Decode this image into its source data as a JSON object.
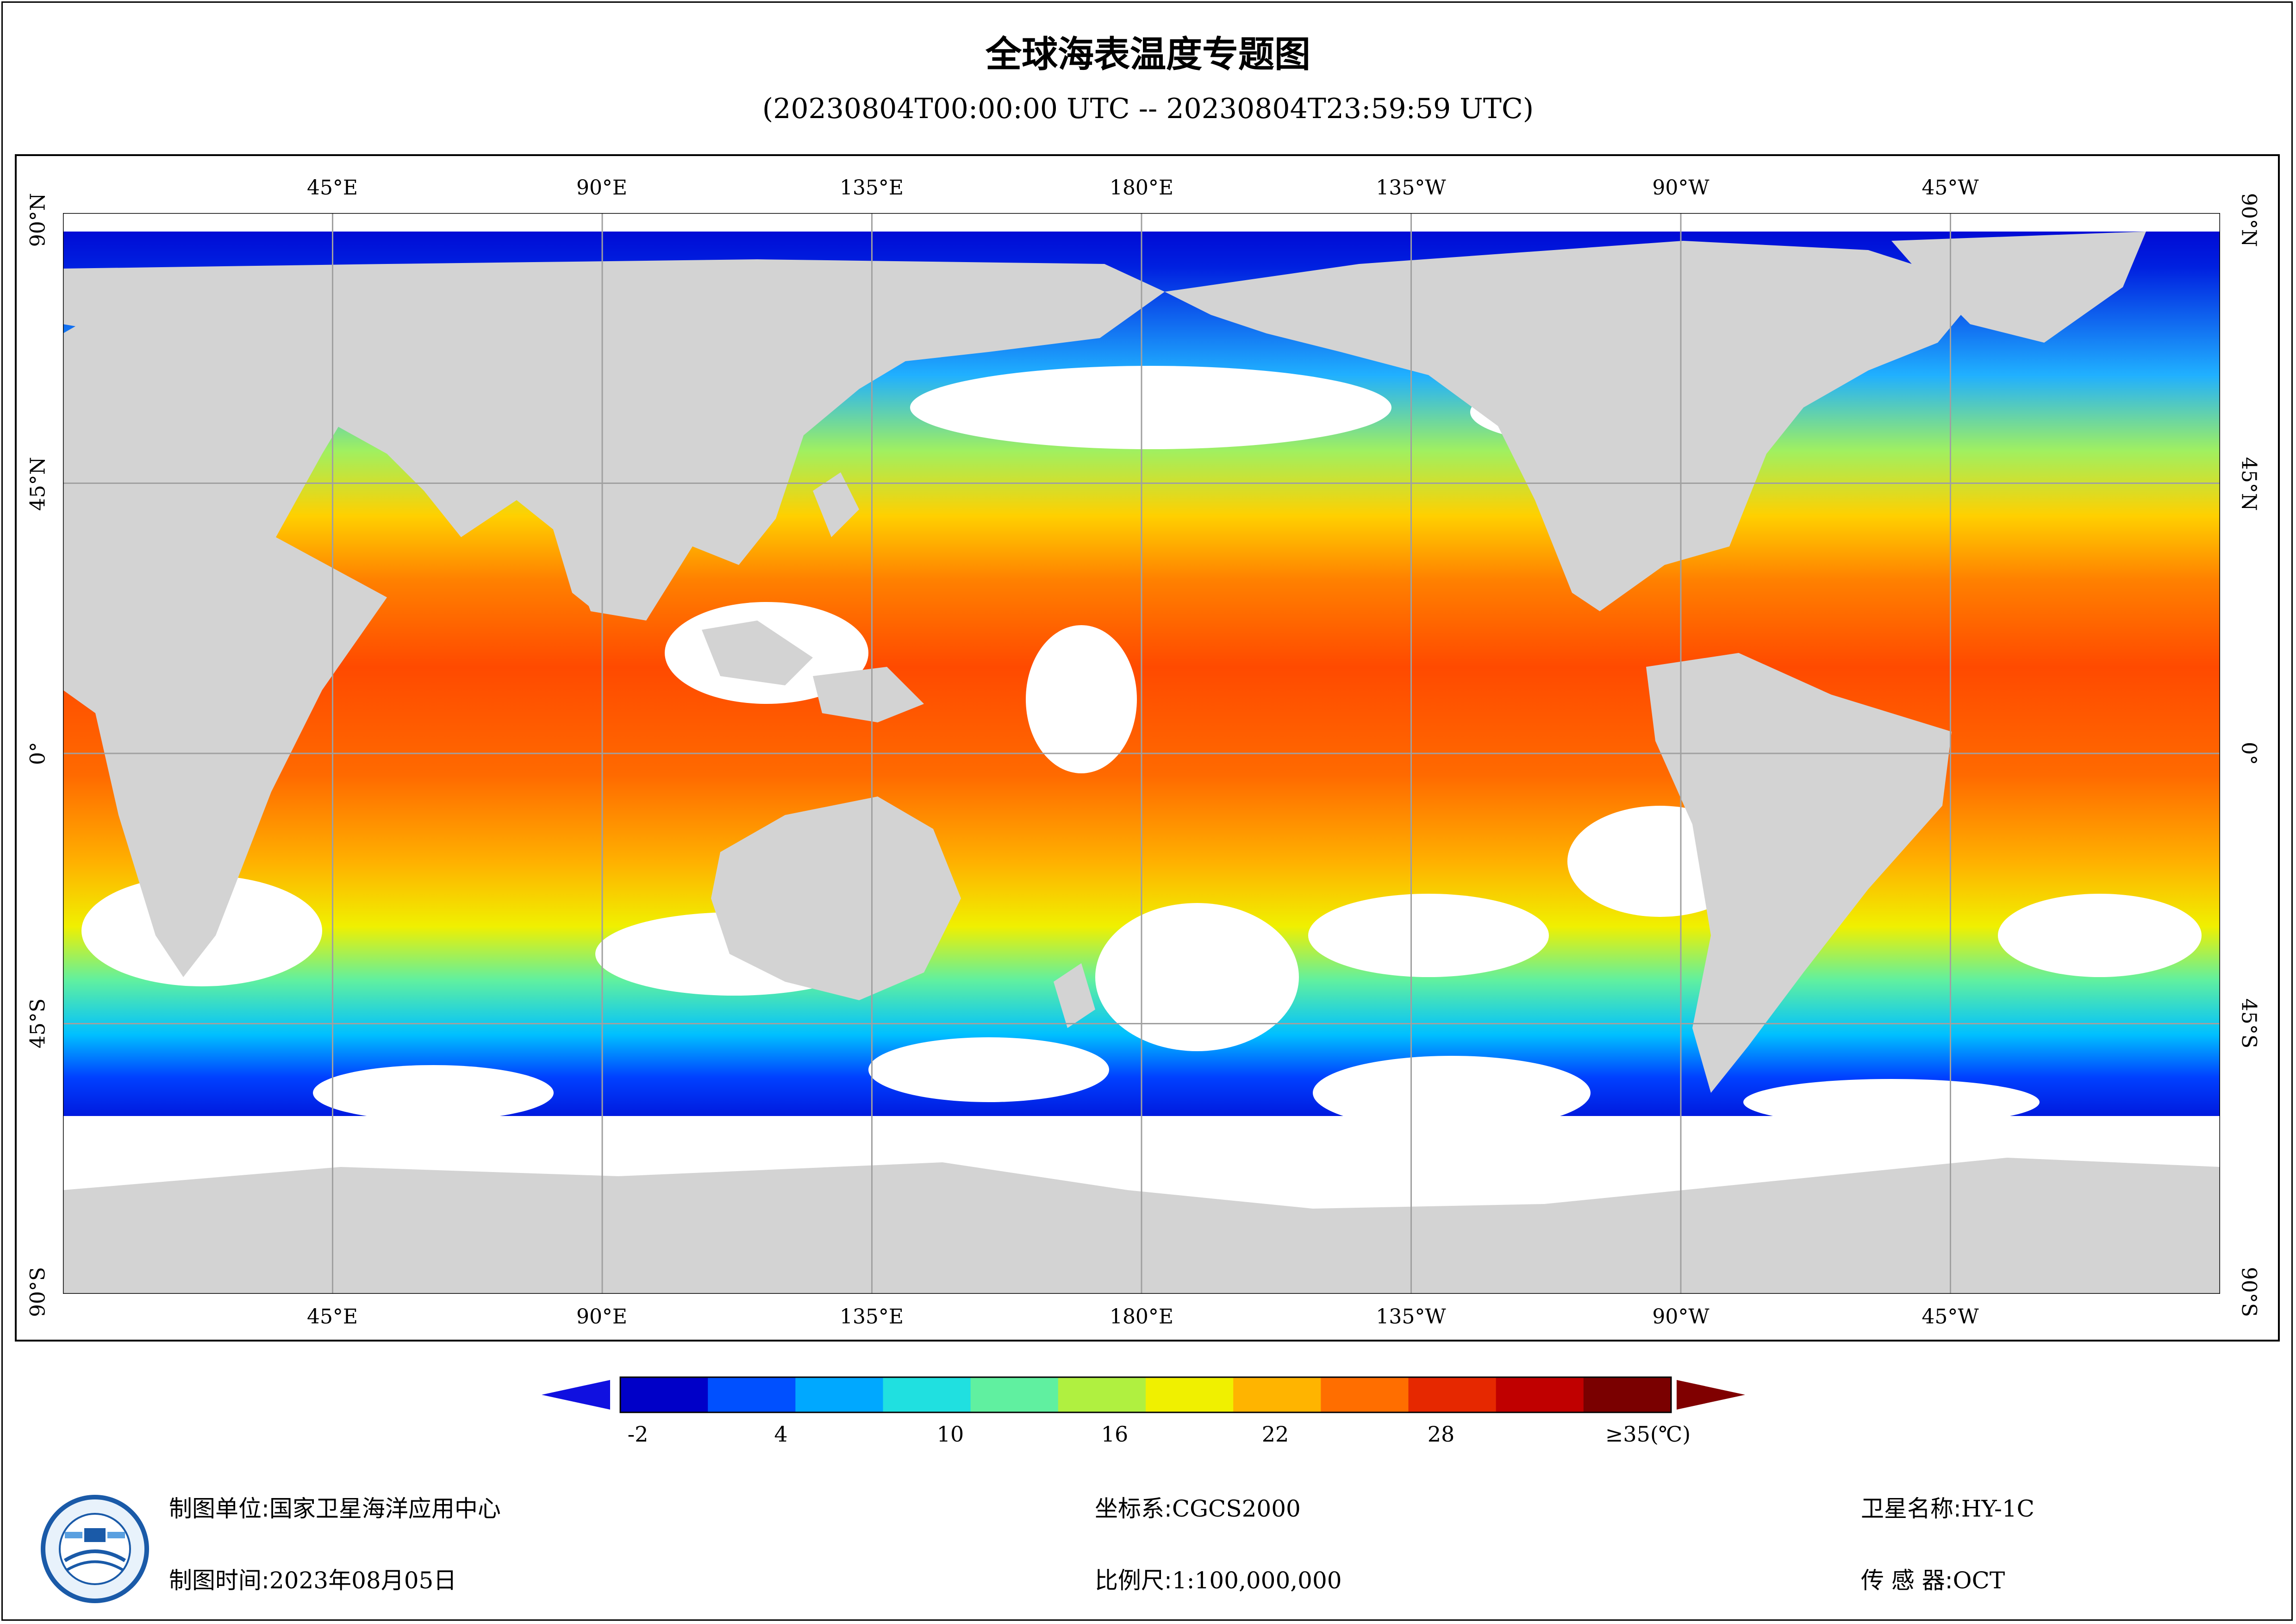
{
  "title": "全球海表温度专题图",
  "subtitle": "(20230804T00:00:00 UTC -- 20230804T23:59:59 UTC)",
  "ticks": {
    "lon": [
      "45°E",
      "90°E",
      "135°E",
      "180°E",
      "135°W",
      "90°W",
      "45°W"
    ],
    "lat": [
      "90°N",
      "45°N",
      "0°",
      "45°S",
      "90°S"
    ]
  },
  "legend": {
    "labels": [
      "-2",
      "4",
      "10",
      "16",
      "22",
      "28",
      "≥35(℃)"
    ],
    "colors": [
      "#0000c8",
      "#0050ff",
      "#00a8ff",
      "#20e0e0",
      "#60f0a0",
      "#b0f040",
      "#f0f000",
      "#ffb400",
      "#ff6e00",
      "#e62800",
      "#c00000",
      "#7a0000"
    ]
  },
  "footer": {
    "unit_label": "制图单位:",
    "unit_value": "国家卫星海洋应用中心",
    "time_label": "制图时间:",
    "time_value": "2023年08月05日",
    "crs_label": "坐标系:",
    "crs_value": "CGCS2000",
    "scale_label": "比例尺:",
    "scale_value": "1:100,000,000",
    "sat_label": "卫星名称:",
    "sat_value": "HY-1C",
    "sensor_label": "传 感 器:",
    "sensor_value": "OCT"
  },
  "colors": {
    "land": "#d3d3d3",
    "cloud": "#ffffff",
    "grid": "#a0a0a0"
  }
}
